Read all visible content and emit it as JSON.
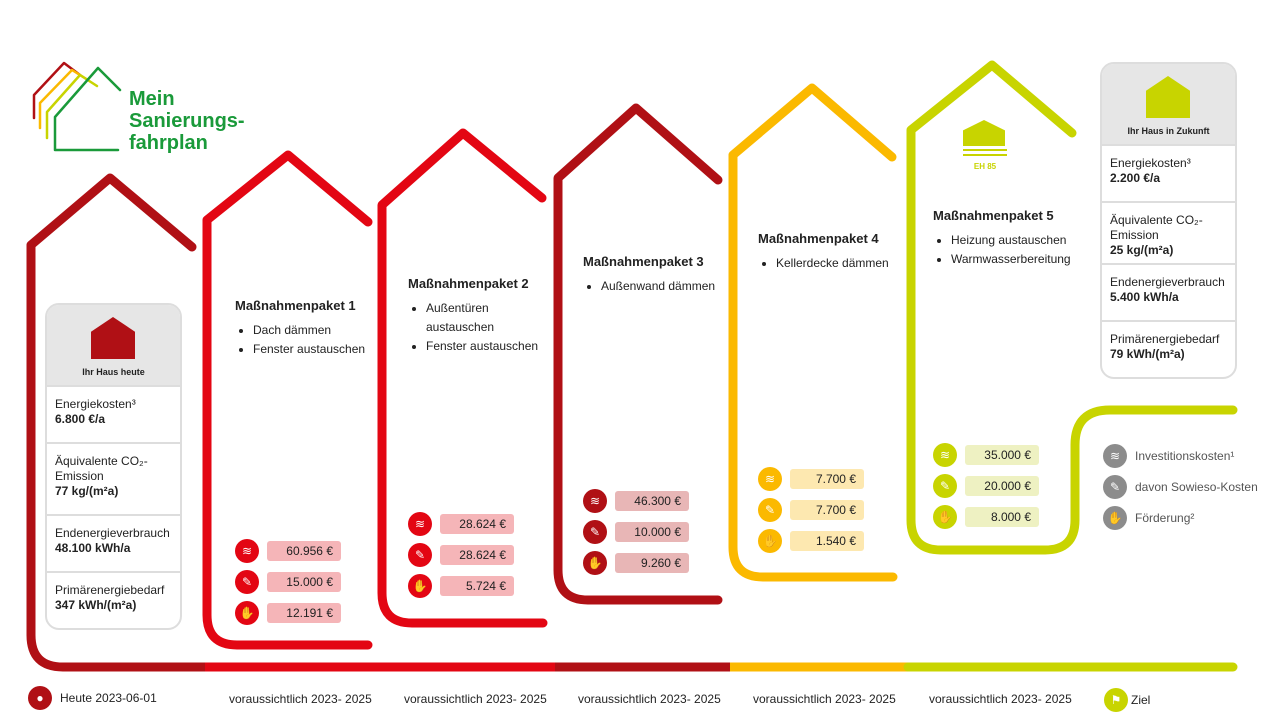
{
  "logo": {
    "line1": "Mein",
    "line2": "Sanierungs-",
    "line3": "fahrplan"
  },
  "colors": {
    "dark_red": "#b01015",
    "red": "#e30613",
    "yellow": "#fbb900",
    "lime": "#c8d400",
    "green": "#1a9a3a"
  },
  "today": {
    "label": "Ihr Haus heute",
    "rows": [
      {
        "label": "Energiekosten³",
        "value": "6.800 €/a"
      },
      {
        "label": "Äquivalente CO₂-Emission",
        "value": "77 kg/(m²a)"
      },
      {
        "label": "Endenergieverbrauch",
        "value": "48.100 kWh/a"
      },
      {
        "label": "Primärenergiebedarf",
        "value": "347 kWh/(m²a)"
      }
    ]
  },
  "future": {
    "label": "Ihr Haus in Zukunft",
    "rows": [
      {
        "label": "Energiekosten³",
        "value": "2.200 €/a"
      },
      {
        "label": "Äquivalente CO₂-Emission",
        "value": "25 kg/(m²a)"
      },
      {
        "label": "Endenergieverbrauch",
        "value": "5.400 kWh/a"
      },
      {
        "label": "Primärenergiebedarf",
        "value": "79 kWh/(m²a)"
      }
    ]
  },
  "packages": [
    {
      "title": "Maßnahmenpaket 1",
      "items": [
        "Dach dämmen",
        "Fenster austauschen"
      ],
      "costs": [
        "60.956 €",
        "15.000 €",
        "12.191 €"
      ]
    },
    {
      "title": "Maßnahmenpaket 2",
      "items": [
        "Außentüren austauschen",
        "Fenster austauschen"
      ],
      "costs": [
        "28.624 €",
        "28.624 €",
        "5.724 €"
      ]
    },
    {
      "title": "Maßnahmenpaket 3",
      "items": [
        "Außenwand dämmen"
      ],
      "costs": [
        "46.300 €",
        "10.000 €",
        "9.260 €"
      ]
    },
    {
      "title": "Maßnahmenpaket 4",
      "items": [
        "Kellerdecke dämmen"
      ],
      "costs": [
        "7.700 €",
        "7.700 €",
        "1.540 €"
      ]
    },
    {
      "title": "Maßnahmenpaket 5",
      "items": [
        "Heizung austauschen",
        "Warmwasserbereitung"
      ],
      "costs": [
        "35.000 €",
        "20.000 €",
        "8.000 €"
      ],
      "badge": "EH 85"
    }
  ],
  "legend": [
    "Investitionskosten¹",
    "davon Sowieso-Kosten",
    "Förderung²"
  ],
  "timeline": [
    "Heute 2023-06-01",
    "voraussichtlich 2023- 2025",
    "voraussichtlich 2023- 2025",
    "voraussichtlich 2023- 2025",
    "voraussichtlich 2023- 2025",
    "voraussichtlich 2023- 2025",
    "Ziel"
  ]
}
